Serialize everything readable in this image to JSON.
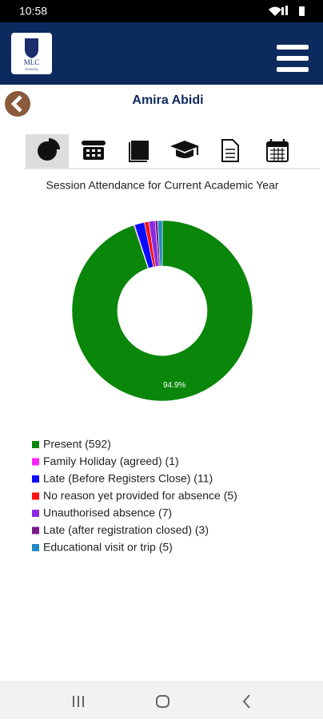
{
  "status_bar": {
    "time": "10:58"
  },
  "header": {
    "logo": "MLC",
    "logo_sub": "SCHOOL"
  },
  "student_name": "Amira Abidi",
  "chart_data": {
    "type": "pie",
    "donut": true,
    "title": "Session Attendance for Current Academic Year",
    "categories": [
      "Present (592)",
      "Family Holiday (agreed) (1)",
      "Late (Before Registers Close) (11)",
      "No reason yet provided for absence (5)",
      "Unauthorised absence (7)",
      "Late (after registration closed) (3)",
      "Educational visit or trip (5)"
    ],
    "values": [
      94.9,
      0.16,
      1.76,
      0.8,
      1.12,
      0.48,
      0.8
    ],
    "value_labels": [
      "94.9%",
      null,
      null,
      null,
      null,
      null,
      null
    ],
    "colors": [
      "#0a860a",
      "#ff22ff",
      "#0a0aff",
      "#ff1010",
      "#8a2be2",
      "#7a1a8a",
      "#1f8ac0"
    ]
  }
}
